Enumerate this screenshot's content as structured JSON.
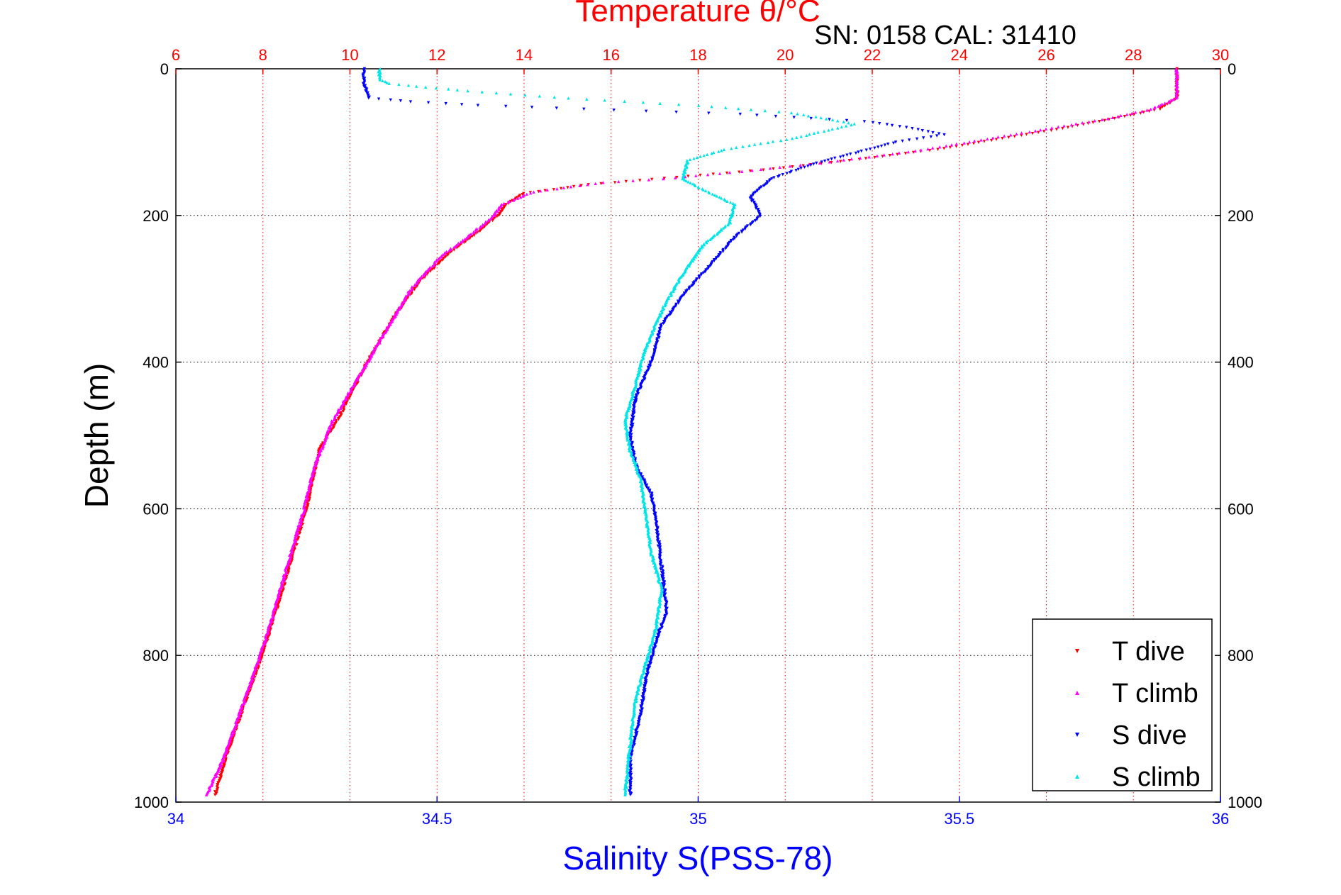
{
  "chart_data": {
    "type": "scatter",
    "title": "Temperature θ/°C",
    "subtitle": "SN: 0158  CAL: 31410",
    "xlabel_top": "Temperature θ/°C",
    "xlabel_bottom": "Salinity S(PSS-78)",
    "ylabel": "Depth (m)",
    "x_top_range": [
      6,
      30
    ],
    "x_top_ticks": [
      "6",
      "8",
      "10",
      "12",
      "14",
      "16",
      "18",
      "20",
      "22",
      "24",
      "26",
      "28",
      "30"
    ],
    "x_bottom_range": [
      34,
      36
    ],
    "x_bottom_ticks": [
      "34",
      "34.5",
      "35",
      "35.5",
      "36"
    ],
    "y_range": [
      0,
      1000
    ],
    "y_reversed": true,
    "y_ticks": [
      "0",
      "200",
      "400",
      "600",
      "800",
      "1000"
    ],
    "grid": true,
    "legend_position": "bottom-right",
    "colors": {
      "top_axis": "#ff0000",
      "bottom_axis": "#0000ff",
      "grid_x": "#ff0000",
      "grid_y": "#000000"
    },
    "series": [
      {
        "name": "T dive",
        "axis": "temperature",
        "color": "#ff0000",
        "marker": "triangle-down",
        "points": [
          [
            29.0,
            0
          ],
          [
            29.0,
            20
          ],
          [
            29.0,
            40
          ],
          [
            28.6,
            55
          ],
          [
            27.8,
            65
          ],
          [
            26.5,
            80
          ],
          [
            25.0,
            95
          ],
          [
            23.5,
            110
          ],
          [
            21.5,
            125
          ],
          [
            19.5,
            138
          ],
          [
            17.5,
            148
          ],
          [
            15.5,
            158
          ],
          [
            14.0,
            170
          ],
          [
            13.6,
            185
          ],
          [
            13.4,
            200
          ],
          [
            13.0,
            220
          ],
          [
            12.3,
            250
          ],
          [
            11.6,
            290
          ],
          [
            11.0,
            340
          ],
          [
            10.4,
            400
          ],
          [
            9.8,
            470
          ],
          [
            9.3,
            520
          ],
          [
            9.0,
            600
          ],
          [
            8.6,
            680
          ],
          [
            8.2,
            760
          ],
          [
            7.8,
            830
          ],
          [
            7.5,
            880
          ],
          [
            7.2,
            930
          ],
          [
            6.9,
            990
          ]
        ]
      },
      {
        "name": "T climb",
        "axis": "temperature",
        "color": "#ff00ff",
        "marker": "triangle-up",
        "points": [
          [
            29.0,
            0
          ],
          [
            29.0,
            20
          ],
          [
            29.0,
            40
          ],
          [
            28.4,
            55
          ],
          [
            27.4,
            68
          ],
          [
            26.0,
            82
          ],
          [
            24.5,
            97
          ],
          [
            23.0,
            112
          ],
          [
            21.0,
            127
          ],
          [
            19.0,
            140
          ],
          [
            17.2,
            150
          ],
          [
            15.8,
            155
          ],
          [
            14.2,
            168
          ],
          [
            13.5,
            185
          ],
          [
            13.3,
            200
          ],
          [
            12.8,
            225
          ],
          [
            12.1,
            255
          ],
          [
            11.4,
            300
          ],
          [
            10.9,
            350
          ],
          [
            10.3,
            410
          ],
          [
            9.6,
            480
          ],
          [
            9.2,
            540
          ],
          [
            8.9,
            610
          ],
          [
            8.5,
            690
          ],
          [
            8.1,
            770
          ],
          [
            7.7,
            840
          ],
          [
            7.4,
            890
          ],
          [
            7.1,
            940
          ],
          [
            6.7,
            990
          ]
        ]
      },
      {
        "name": "S dive",
        "axis": "salinity",
        "color": "#0000ff",
        "marker": "triangle-down",
        "points": [
          [
            34.36,
            0
          ],
          [
            34.36,
            20
          ],
          [
            34.37,
            40
          ],
          [
            34.45,
            45
          ],
          [
            34.58,
            50
          ],
          [
            34.78,
            55
          ],
          [
            35.08,
            62
          ],
          [
            35.32,
            72
          ],
          [
            35.4,
            80
          ],
          [
            35.47,
            90
          ],
          [
            35.38,
            100
          ],
          [
            35.3,
            115
          ],
          [
            35.22,
            130
          ],
          [
            35.14,
            150
          ],
          [
            35.1,
            175
          ],
          [
            35.12,
            200
          ],
          [
            35.07,
            230
          ],
          [
            35.02,
            270
          ],
          [
            34.97,
            310
          ],
          [
            34.93,
            350
          ],
          [
            34.91,
            400
          ],
          [
            34.88,
            450
          ],
          [
            34.87,
            500
          ],
          [
            34.88,
            540
          ],
          [
            34.91,
            580
          ],
          [
            34.92,
            620
          ],
          [
            34.93,
            680
          ],
          [
            34.94,
            740
          ],
          [
            34.92,
            780
          ],
          [
            34.9,
            830
          ],
          [
            34.89,
            880
          ],
          [
            34.87,
            940
          ],
          [
            34.87,
            990
          ]
        ]
      },
      {
        "name": "S climb",
        "axis": "salinity",
        "color": "#00e5e5",
        "marker": "triangle-up",
        "points": [
          [
            34.39,
            0
          ],
          [
            34.39,
            15
          ],
          [
            34.41,
            20
          ],
          [
            34.48,
            25
          ],
          [
            34.56,
            30
          ],
          [
            34.75,
            40
          ],
          [
            35.0,
            50
          ],
          [
            35.18,
            60
          ],
          [
            35.3,
            75
          ],
          [
            35.18,
            95
          ],
          [
            35.05,
            110
          ],
          [
            34.98,
            125
          ],
          [
            34.97,
            150
          ],
          [
            35.01,
            165
          ],
          [
            35.07,
            185
          ],
          [
            35.06,
            210
          ],
          [
            35.01,
            240
          ],
          [
            34.97,
            280
          ],
          [
            34.93,
            330
          ],
          [
            34.9,
            380
          ],
          [
            34.88,
            430
          ],
          [
            34.86,
            480
          ],
          [
            34.87,
            520
          ],
          [
            34.89,
            560
          ],
          [
            34.9,
            610
          ],
          [
            34.91,
            660
          ],
          [
            34.93,
            710
          ],
          [
            34.92,
            760
          ],
          [
            34.9,
            810
          ],
          [
            34.88,
            860
          ],
          [
            34.87,
            920
          ],
          [
            34.86,
            990
          ]
        ]
      }
    ]
  }
}
